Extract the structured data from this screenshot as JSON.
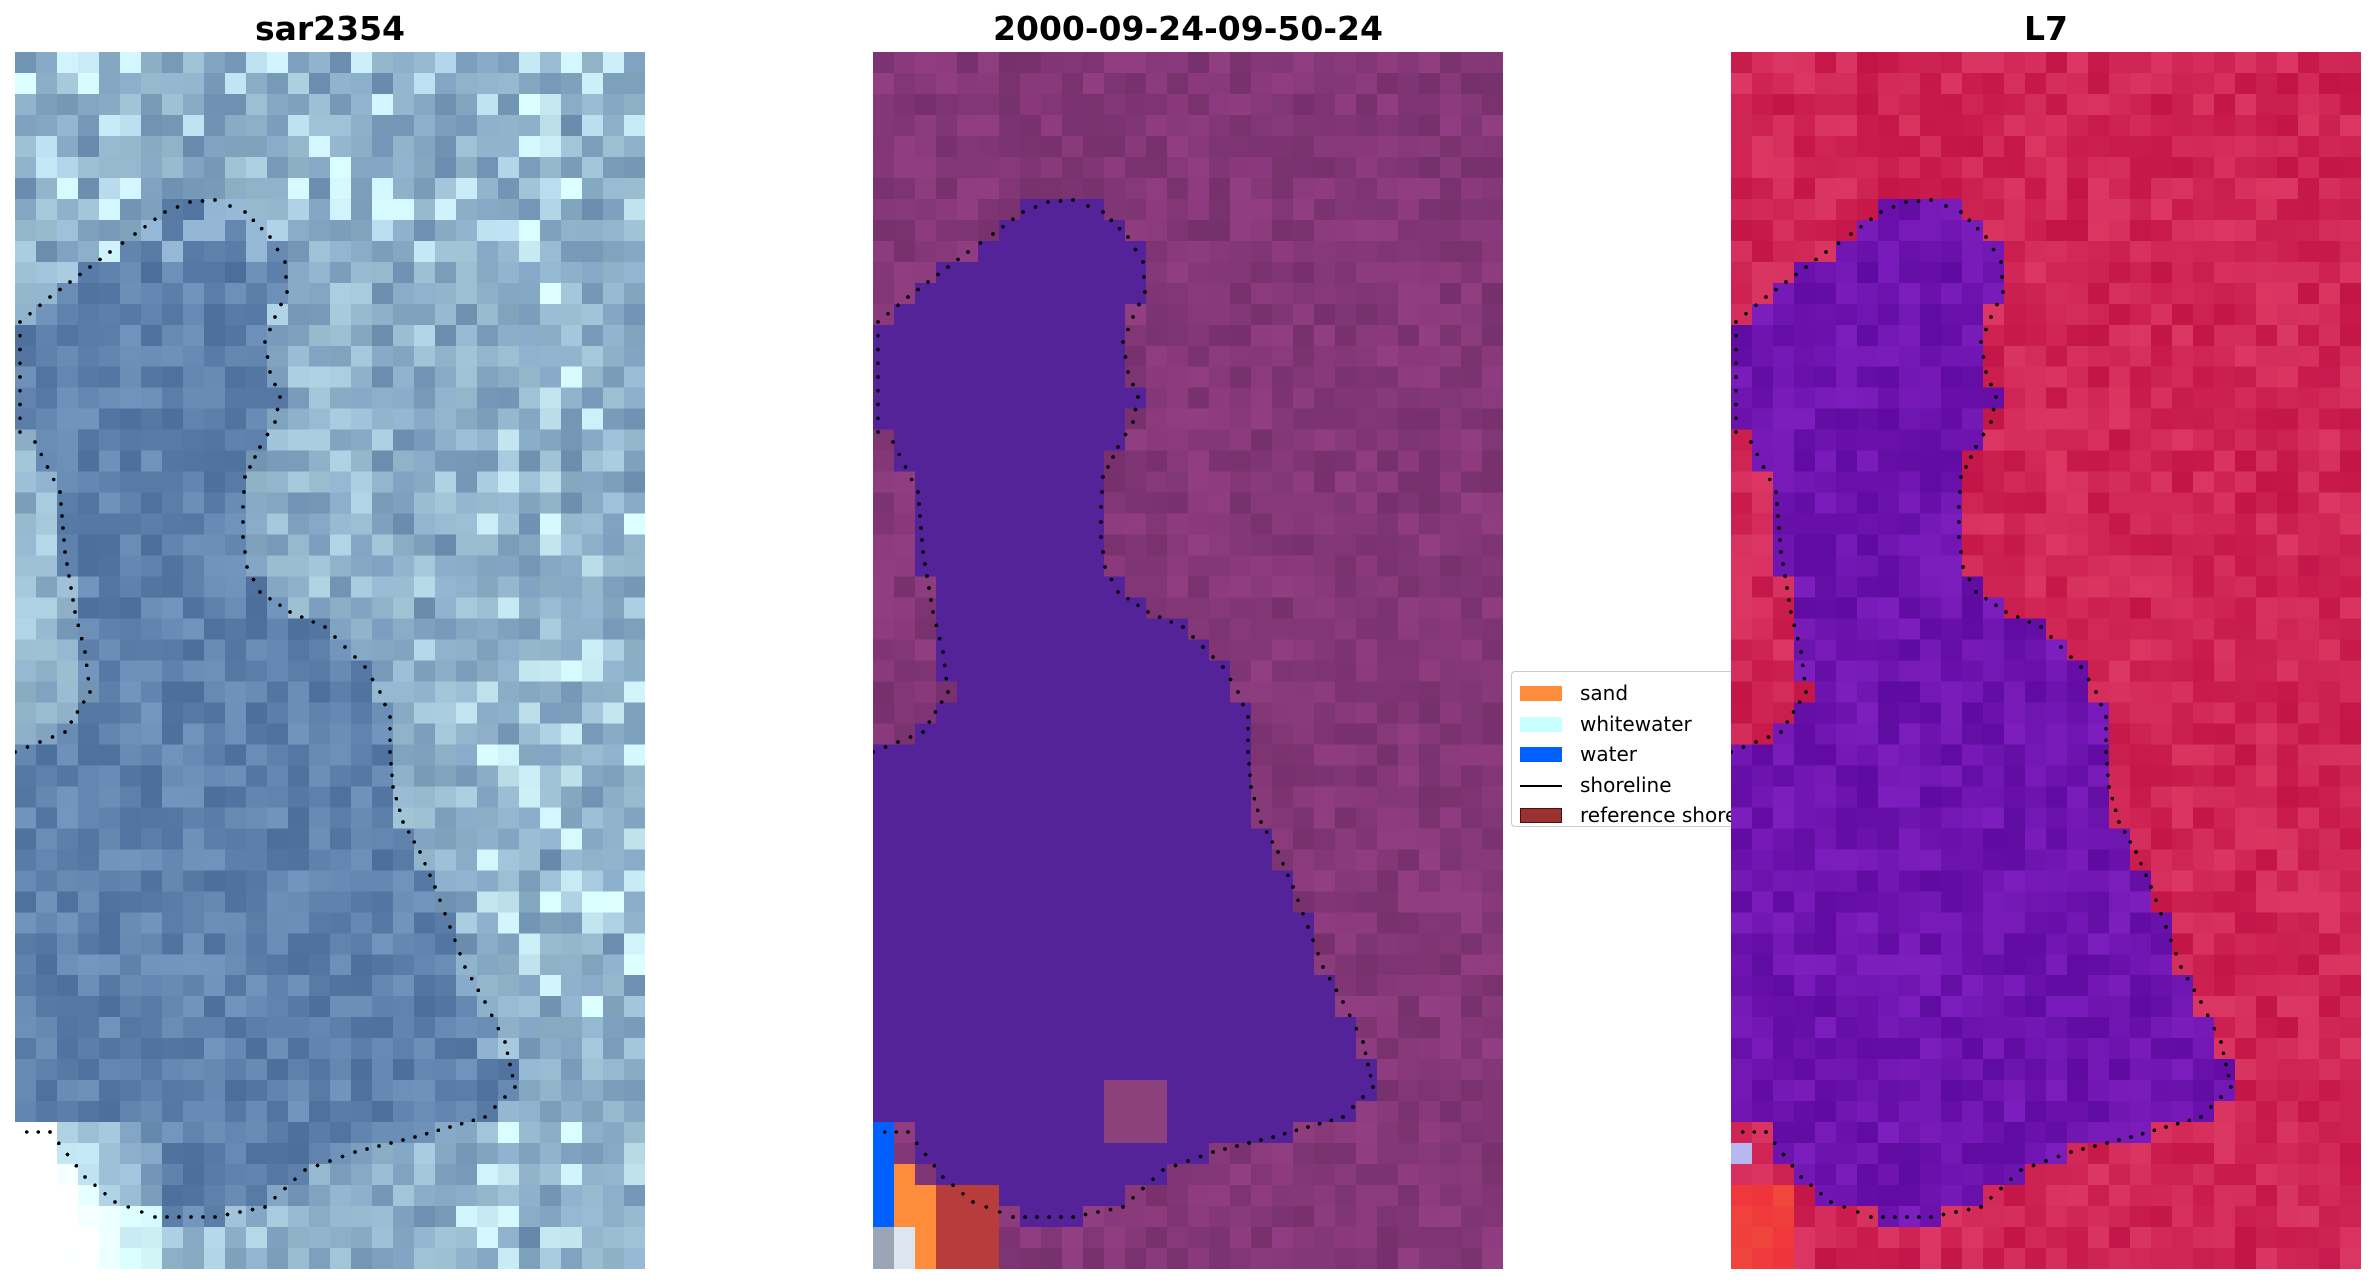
{
  "panels": [
    {
      "title": "sar2354",
      "kind": "rgb"
    },
    {
      "title": "2000-09-24-09-50-24",
      "kind": "classified"
    },
    {
      "title": "L7",
      "kind": "index"
    }
  ],
  "legend": {
    "items": [
      {
        "label": "sand",
        "color": "#ff8c3a",
        "type": "patch"
      },
      {
        "label": "whitewater",
        "color": "#c8ffff",
        "type": "patch"
      },
      {
        "label": "water",
        "color": "#0060ff",
        "type": "patch"
      },
      {
        "label": "shoreline",
        "color": "#000000",
        "type": "line"
      },
      {
        "label": "reference shoreline",
        "color": "#9b3232",
        "type": "patch"
      }
    ]
  },
  "colors": {
    "rgb_base": "#4f76a0",
    "classified_water": "#54239a",
    "classified_land": "#7d3a74",
    "index_water": "#6a0aa6",
    "index_land": "#c8144a",
    "shoreline": "#000000"
  }
}
